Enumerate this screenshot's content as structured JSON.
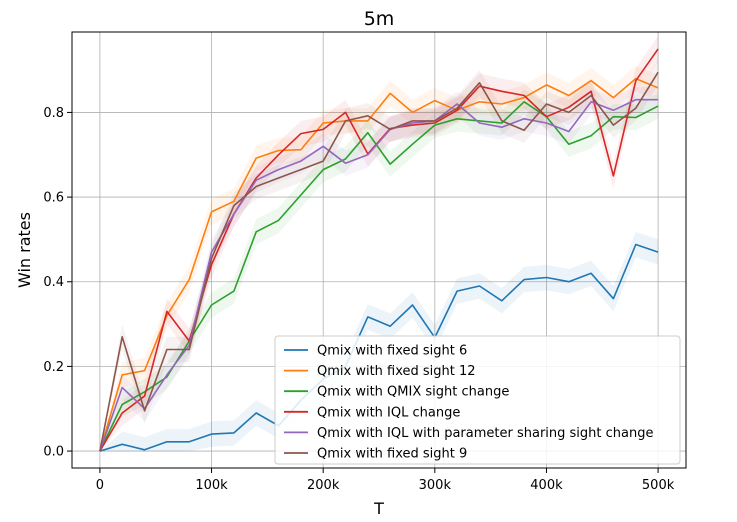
{
  "chart_data": {
    "type": "line",
    "title": "5m",
    "xlabel": "T",
    "ylabel": "Win rates",
    "xlim": [
      -25000,
      525000
    ],
    "ylim": [
      -0.04,
      0.99
    ],
    "xticks": [
      0,
      100000,
      200000,
      300000,
      400000,
      500000
    ],
    "xtick_labels": [
      "0",
      "100k",
      "200k",
      "300k",
      "400k",
      "500k"
    ],
    "yticks": [
      0.0,
      0.2,
      0.4,
      0.6,
      0.8
    ],
    "ytick_labels": [
      "0.0",
      "0.2",
      "0.4",
      "0.6",
      "0.8"
    ],
    "grid": true,
    "legend_position": "lower-right",
    "x": [
      0,
      20000,
      40000,
      60000,
      80000,
      100000,
      120000,
      140000,
      160000,
      180000,
      200000,
      220000,
      240000,
      260000,
      280000,
      300000,
      320000,
      340000,
      360000,
      380000,
      400000,
      420000,
      440000,
      460000,
      480000,
      500000
    ],
    "series": [
      {
        "name": "Qmix with fixed sight 6",
        "color": "#1f77b4",
        "values": [
          0.0,
          0.016,
          0.003,
          0.022,
          0.022,
          0.04,
          0.043,
          0.09,
          0.06,
          0.12,
          0.17,
          0.2,
          0.317,
          0.295,
          0.345,
          0.268,
          0.378,
          0.39,
          0.355,
          0.405,
          0.41,
          0.4,
          0.42,
          0.36,
          0.488,
          0.47
        ]
      },
      {
        "name": "Qmix with fixed sight 12",
        "color": "#ff7f0e",
        "values": [
          0.0,
          0.18,
          0.19,
          0.32,
          0.405,
          0.565,
          0.59,
          0.692,
          0.71,
          0.712,
          0.775,
          0.78,
          0.78,
          0.845,
          0.8,
          0.828,
          0.805,
          0.825,
          0.82,
          0.835,
          0.865,
          0.84,
          0.875,
          0.835,
          0.88,
          0.858
        ]
      },
      {
        "name": "Qmix with QMIX sight change",
        "color": "#2ca02c",
        "values": [
          0.0,
          0.11,
          0.14,
          0.175,
          0.26,
          0.345,
          0.378,
          0.518,
          0.545,
          0.605,
          0.665,
          0.69,
          0.752,
          0.678,
          0.725,
          0.77,
          0.785,
          0.78,
          0.775,
          0.825,
          0.79,
          0.725,
          0.745,
          0.79,
          0.788,
          0.815
        ]
      },
      {
        "name": "Qmix with IQL change",
        "color": "#d62728",
        "values": [
          0.0,
          0.09,
          0.13,
          0.33,
          0.26,
          0.44,
          0.56,
          0.645,
          0.7,
          0.75,
          0.76,
          0.8,
          0.702,
          0.762,
          0.77,
          0.775,
          0.805,
          0.862,
          0.85,
          0.84,
          0.79,
          0.812,
          0.85,
          0.65,
          0.875,
          0.95
        ]
      },
      {
        "name": "Qmix with IQL with parameter sharing sight change",
        "color": "#9467bd",
        "values": [
          0.0,
          0.15,
          0.1,
          0.18,
          0.25,
          0.47,
          0.56,
          0.64,
          0.665,
          0.685,
          0.72,
          0.68,
          0.7,
          0.76,
          0.775,
          0.78,
          0.82,
          0.775,
          0.765,
          0.785,
          0.775,
          0.755,
          0.825,
          0.805,
          0.83,
          0.83
        ]
      },
      {
        "name": "Qmix with fixed sight 9",
        "color": "#8c564b",
        "values": [
          0.0,
          0.27,
          0.095,
          0.24,
          0.24,
          0.455,
          0.58,
          0.625,
          0.645,
          0.665,
          0.685,
          0.78,
          0.792,
          0.76,
          0.78,
          0.78,
          0.81,
          0.87,
          0.78,
          0.758,
          0.82,
          0.8,
          0.84,
          0.77,
          0.81,
          0.895
        ]
      }
    ]
  }
}
